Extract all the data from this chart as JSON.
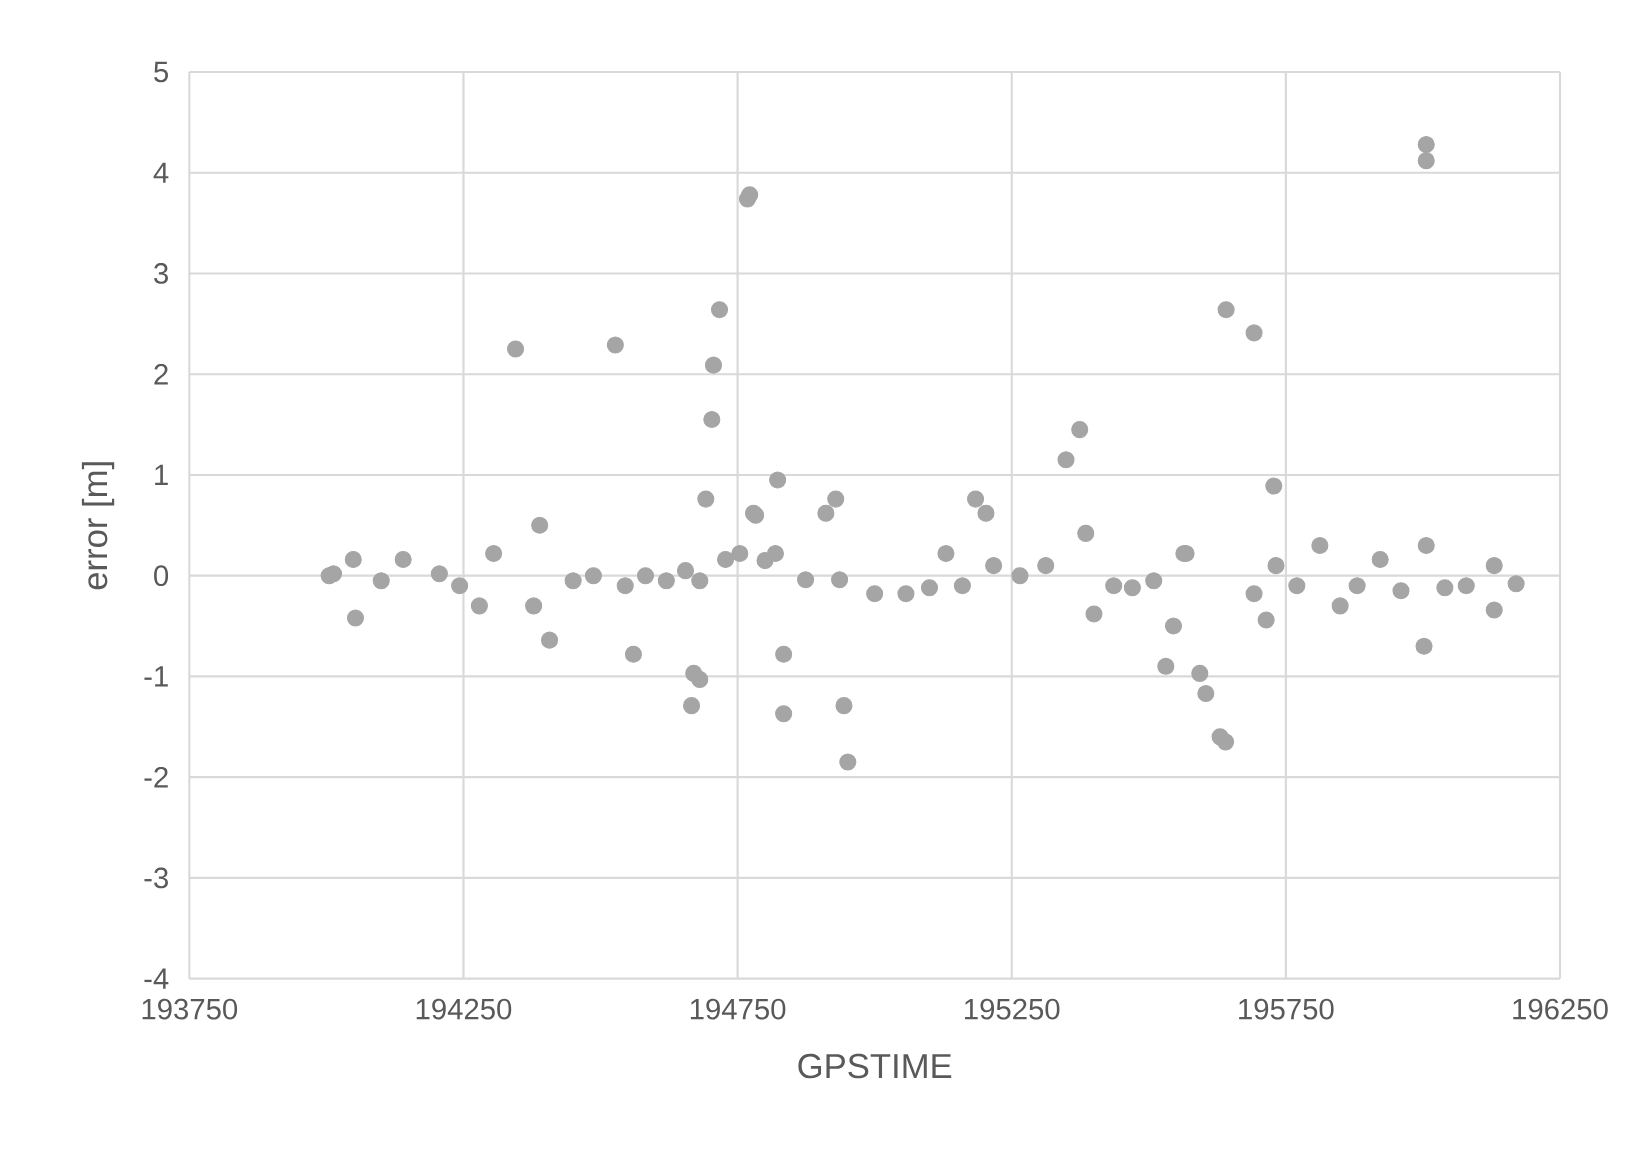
{
  "chart_data": {
    "type": "scatter",
    "xlabel": "GPSTIME",
    "ylabel": "error [m]",
    "xlim": [
      193750,
      196250
    ],
    "ylim": [
      -4,
      5
    ],
    "xticks": [
      193750,
      194250,
      194750,
      195250,
      195750,
      196250
    ],
    "yticks": [
      -4,
      -3,
      -2,
      -1,
      0,
      1,
      2,
      3,
      4,
      5
    ],
    "grid": true,
    "marker": "circle",
    "color": "#a5a5a5",
    "x": [
      194005,
      194013,
      194049,
      194053,
      194100,
      194140,
      194206,
      194243,
      194279,
      194305,
      194345,
      194378,
      194389,
      194407,
      194450,
      194487,
      194527,
      194545,
      194560,
      194582,
      194620,
      194655,
      194666,
      194670,
      194681,
      194681,
      194692,
      194703,
      194706,
      194717,
      194728,
      194754,
      194768,
      194772,
      194779,
      194783,
      194800,
      194819,
      194823,
      194834,
      194834,
      194874,
      194911,
      194929,
      194936,
      194944,
      194951,
      195000,
      195057,
      195100,
      195130,
      195160,
      195184,
      195203,
      195217,
      195265,
      195312,
      195349,
      195374,
      195385,
      195400,
      195436,
      195470,
      195509,
      195531,
      195545,
      195564,
      195568,
      195593,
      195604,
      195630,
      195640,
      195641,
      195692,
      195692,
      195714,
      195728,
      195732,
      195770,
      195812,
      195849,
      195880,
      195922,
      195960,
      196002,
      196006,
      196006,
      196006,
      196040,
      196079,
      196130,
      196130,
      196170
    ],
    "values": [
      0.0,
      0.02,
      0.16,
      -0.42,
      -0.05,
      0.16,
      0.02,
      -0.1,
      -0.3,
      0.22,
      2.25,
      -0.3,
      0.5,
      -0.64,
      -0.05,
      0.0,
      2.29,
      -0.1,
      -0.78,
      0.0,
      -0.05,
      0.05,
      -1.29,
      -0.97,
      -1.03,
      -0.05,
      0.76,
      1.55,
      2.09,
      2.64,
      0.16,
      0.22,
      3.74,
      3.78,
      0.62,
      0.6,
      0.15,
      0.22,
      0.95,
      -0.78,
      -1.37,
      -0.04,
      0.62,
      0.76,
      -0.04,
      -1.29,
      -1.85,
      -0.18,
      -0.18,
      -0.12,
      0.22,
      -0.1,
      0.76,
      0.62,
      0.1,
      0.0,
      0.1,
      1.15,
      1.45,
      0.42,
      -0.38,
      -0.1,
      -0.12,
      -0.05,
      -0.9,
      -0.5,
      0.22,
      0.22,
      -0.97,
      -1.17,
      -1.6,
      -1.65,
      2.64,
      2.41,
      -0.18,
      -0.44,
      0.89,
      0.1,
      -0.1,
      0.3,
      -0.3,
      -0.1,
      0.16,
      -0.15,
      -0.7,
      0.3,
      4.28,
      4.12,
      -0.12,
      -0.1,
      0.1,
      -0.34,
      -0.08
    ]
  }
}
